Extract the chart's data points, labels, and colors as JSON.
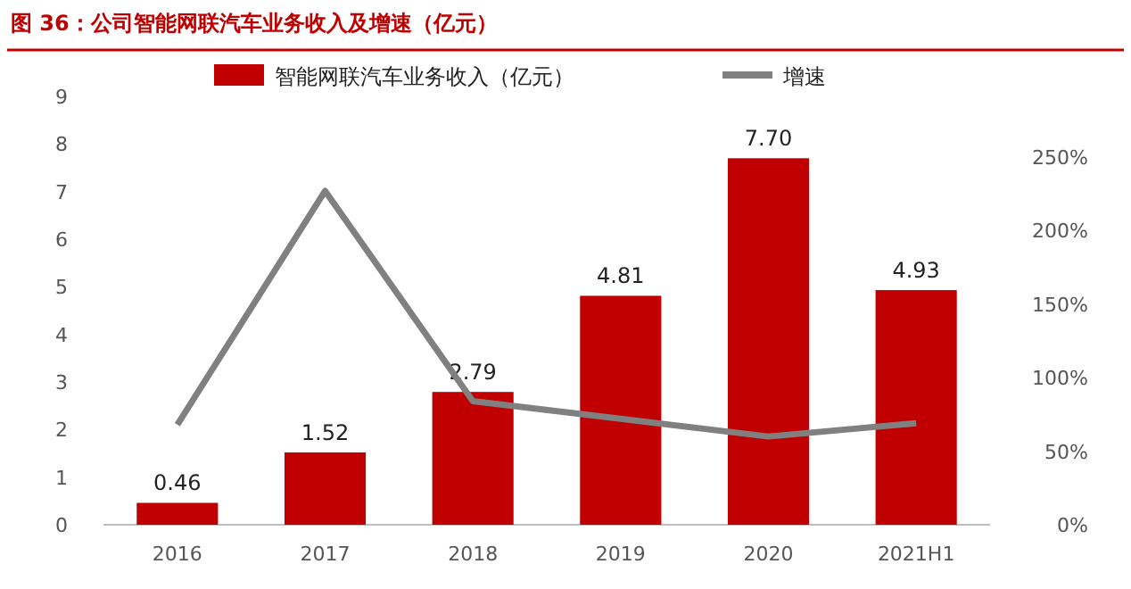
{
  "chart_data": {
    "type": "bar",
    "title": "图 36：公司智能网联汽车业务收入及增速（亿元）",
    "categories": [
      "2016",
      "2017",
      "2018",
      "2019",
      "2020",
      "2021H1"
    ],
    "series": [
      {
        "name": "智能网联汽车业务收入（亿元）",
        "color": "#c00000",
        "values": [
          0.46,
          1.52,
          2.79,
          4.81,
          7.7,
          4.93
        ],
        "value_labels": [
          "0.46",
          "1.52",
          "2.79",
          "4.81",
          "7.70",
          "4.93"
        ]
      },
      {
        "name": "增速",
        "type": "line",
        "axis": "y2",
        "color": "#808080",
        "values": [
          68,
          227,
          84,
          72,
          60,
          69
        ]
      }
    ],
    "ylim": [
      0,
      9
    ],
    "yticks": [
      0,
      1,
      2,
      3,
      4,
      5,
      6,
      7,
      8,
      9
    ],
    "y2lim": [
      0,
      250
    ],
    "y2ticks": [
      {
        "value": 0,
        "label": "0%"
      },
      {
        "value": 50,
        "label": "50%"
      },
      {
        "value": 100,
        "label": "100%"
      },
      {
        "value": 150,
        "label": "150%"
      },
      {
        "value": 200,
        "label": "200%"
      },
      {
        "value": 250,
        "label": "250%"
      }
    ],
    "legend": "top",
    "grid": false
  }
}
